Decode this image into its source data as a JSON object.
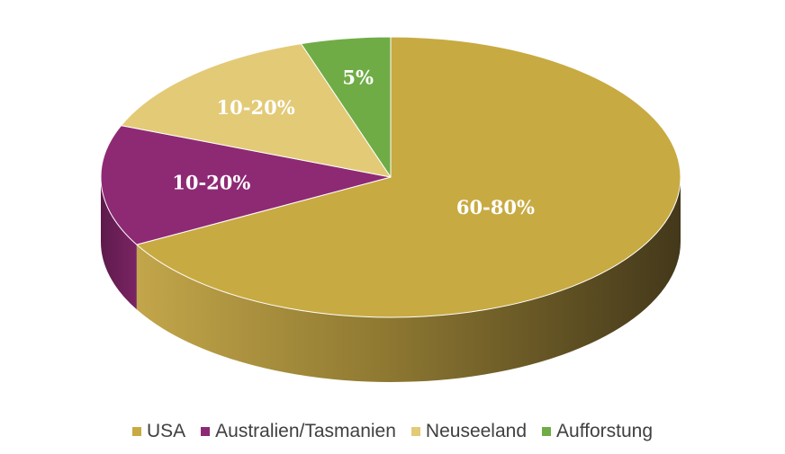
{
  "chart_data": {
    "type": "pie",
    "style": "3d",
    "categories": [
      "USA",
      "Australien/Tasmanien",
      "Neuseeland",
      "Aufforstung"
    ],
    "values": [
      67,
      14,
      14,
      5
    ],
    "data_labels": [
      "60-80%",
      "10-20%",
      "10-20%",
      "5%"
    ],
    "colors": [
      "#C8AA42",
      "#8E2A74",
      "#E3CA77",
      "#6FAC46"
    ],
    "label_colors": [
      "#ffffff",
      "#ffffff",
      "#ffffff",
      "#ffffff"
    ],
    "legend_position": "bottom",
    "title": ""
  }
}
